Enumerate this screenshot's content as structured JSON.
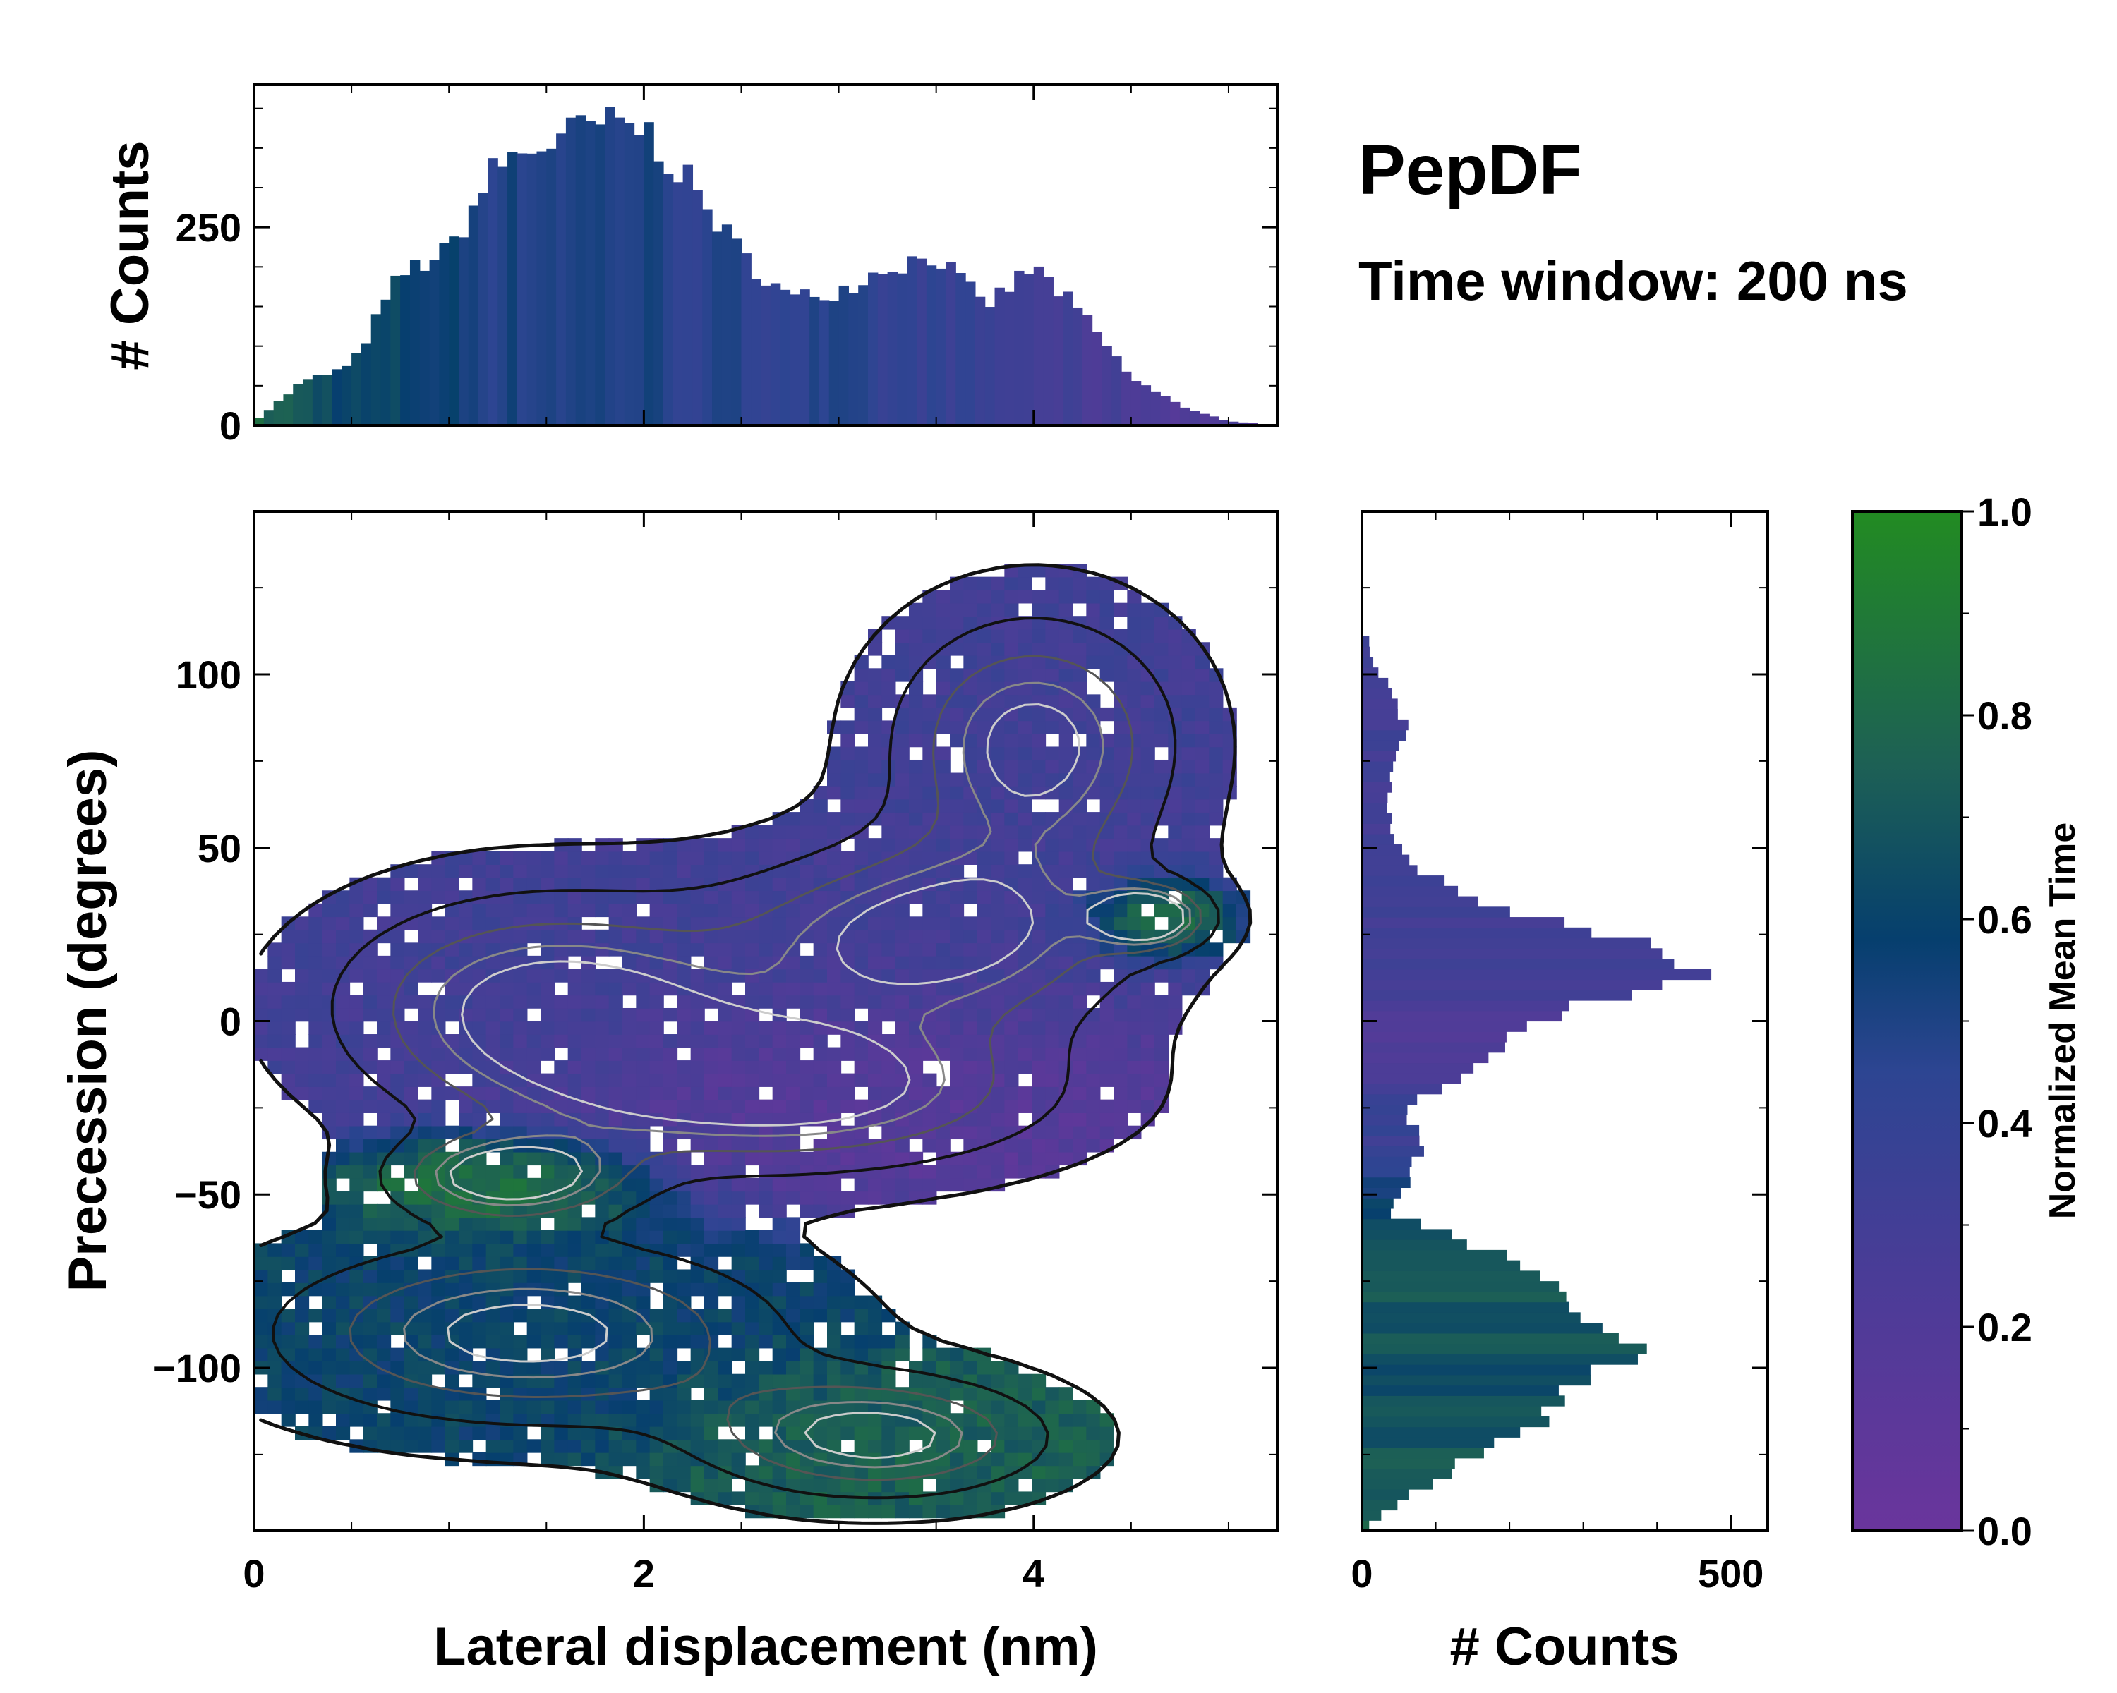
{
  "figure": {
    "title": "PepDF",
    "subtitle": "Time window: 200 ns"
  },
  "colors": {
    "purple": "#6a359c",
    "blue": "#2d4592",
    "navy": "#063f6e",
    "teal": "#1d6055",
    "green": "#228b22",
    "contour_dark": "#111111",
    "contour_light": "#cccccc"
  },
  "chart_data": [
    {
      "id": "top_histogram",
      "type": "bar",
      "title": "",
      "xlabel": "",
      "ylabel": "# Counts",
      "xlim": [
        0,
        5.25
      ],
      "ylim": [
        0,
        430
      ],
      "yticks": [
        0,
        250
      ],
      "bin_width": 0.05,
      "x": [
        0.0,
        0.25,
        0.5,
        0.75,
        1.0,
        1.25,
        1.5,
        1.75,
        2.0,
        2.25,
        2.5,
        2.75,
        3.0,
        3.25,
        3.5,
        3.75,
        4.0,
        4.25,
        4.5,
        4.75,
        5.0,
        5.25
      ],
      "values": [
        5,
        55,
        75,
        190,
        220,
        330,
        355,
        380,
        375,
        300,
        215,
        160,
        170,
        200,
        215,
        150,
        200,
        140,
        60,
        25,
        5,
        0
      ],
      "color_values": [
        0.8,
        0.7,
        0.6,
        0.6,
        0.55,
        0.5,
        0.5,
        0.5,
        0.5,
        0.45,
        0.45,
        0.45,
        0.45,
        0.4,
        0.4,
        0.35,
        0.3,
        0.25,
        0.25,
        0.2,
        0.2,
        0.2
      ]
    },
    {
      "id": "joint_distribution",
      "type": "heatmap",
      "title": "",
      "xlabel": "Lateral displacement (nm)",
      "ylabel": "Precession (degrees)",
      "xlim": [
        0,
        5.25
      ],
      "ylim": [
        -147,
        147
      ],
      "xticks": [
        0,
        2,
        4
      ],
      "yticks": [
        -100,
        -50,
        0,
        50,
        100
      ],
      "clusters": [
        {
          "center": [
            1.5,
            5
          ],
          "spread": [
            0.75,
            22
          ],
          "mean_time": 0.3
        },
        {
          "center": [
            3.5,
            25
          ],
          "spread": [
            0.7,
            18
          ],
          "mean_time": 0.28
        },
        {
          "center": [
            2.8,
            -20
          ],
          "spread": [
            0.9,
            16
          ],
          "mean_time": 0.15
        },
        {
          "center": [
            4.0,
            80
          ],
          "spread": [
            0.5,
            25
          ],
          "mean_time": 0.3
        },
        {
          "center": [
            1.4,
            -90
          ],
          "spread": [
            0.9,
            18
          ],
          "mean_time": 0.6
        },
        {
          "center": [
            3.2,
            -120
          ],
          "spread": [
            0.6,
            12
          ],
          "mean_time": 0.75
        },
        {
          "center": [
            1.3,
            -45
          ],
          "spread": [
            0.4,
            8
          ],
          "mean_time": 0.9
        },
        {
          "center": [
            4.6,
            30
          ],
          "spread": [
            0.2,
            6
          ],
          "mean_time": 0.95
        }
      ]
    },
    {
      "id": "right_histogram",
      "type": "bar",
      "orientation": "horizontal",
      "title": "",
      "xlabel": "# Counts",
      "ylabel": "",
      "xlim": [
        0,
        550
      ],
      "ylim": [
        -147,
        147
      ],
      "xticks": [
        0,
        500
      ],
      "bin_width": 3,
      "y": [
        105,
        95,
        85,
        75,
        65,
        55,
        45,
        35,
        25,
        15,
        5,
        -5,
        -15,
        -25,
        -35,
        -45,
        -55,
        -65,
        -75,
        -85,
        -95,
        -105,
        -115,
        -125,
        -135,
        -145
      ],
      "values": [
        10,
        40,
        60,
        45,
        35,
        40,
        70,
        150,
        330,
        470,
        300,
        200,
        150,
        60,
        80,
        70,
        30,
        160,
        250,
        320,
        360,
        290,
        240,
        160,
        80,
        10
      ],
      "color_values": [
        0.3,
        0.3,
        0.3,
        0.3,
        0.3,
        0.3,
        0.3,
        0.3,
        0.3,
        0.3,
        0.25,
        0.2,
        0.2,
        0.4,
        0.35,
        0.5,
        0.6,
        0.65,
        0.7,
        0.7,
        0.68,
        0.65,
        0.68,
        0.7,
        0.72,
        0.75
      ]
    },
    {
      "id": "colorbar",
      "type": "colorbar",
      "label": "Normalized Mean Time",
      "ylim": [
        0,
        1
      ],
      "ticks": [
        0.0,
        0.2,
        0.4,
        0.6,
        0.8,
        1.0
      ],
      "tick_labels": [
        "0.0",
        "0.2",
        "0.4",
        "0.6",
        "0.8",
        "1.0"
      ]
    }
  ]
}
